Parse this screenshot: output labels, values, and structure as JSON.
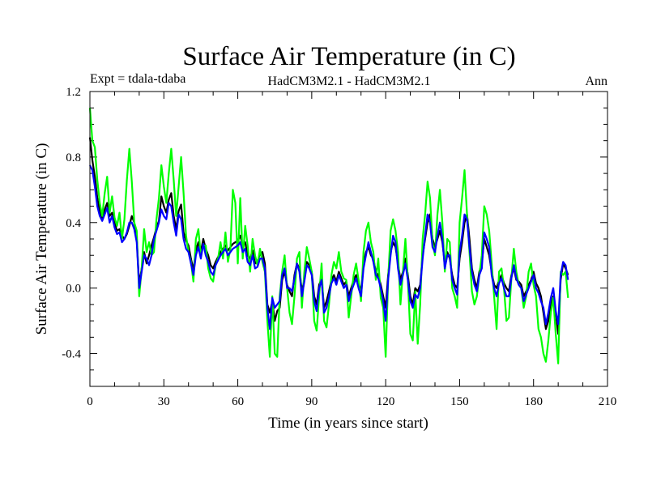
{
  "chart_data": {
    "type": "line",
    "title": "Surface Air Temperature (in C)",
    "subtitle_left": "Expt = tdala-tdaba",
    "subtitle_center": "HadCM3M2.1 - HadCM3M2.1",
    "subtitle_right": "Ann",
    "xlabel": "Time (in years since start)",
    "ylabel": "Surface Air Temperature (in C)",
    "xlim": [
      0,
      210
    ],
    "ylim": [
      -0.6,
      1.2
    ],
    "x_ticks": [
      0,
      30,
      60,
      90,
      120,
      150,
      180,
      210
    ],
    "x_tick_labels": [
      "0",
      "30",
      "60",
      "90",
      "120",
      "150",
      "180",
      "210"
    ],
    "y_ticks": [
      -0.4,
      0.0,
      0.4,
      0.8,
      1.2
    ],
    "y_tick_labels": [
      "-0.4",
      "0.0",
      "0.4",
      "0.8",
      "1.2"
    ],
    "grid": false,
    "legend": "none",
    "series": [
      {
        "name": "black",
        "color": "#000000",
        "x_start": 0,
        "x_step": 1,
        "values": [
          0.92,
          0.78,
          0.68,
          0.55,
          0.47,
          0.42,
          0.48,
          0.52,
          0.44,
          0.46,
          0.4,
          0.35,
          0.36,
          0.32,
          0.3,
          0.33,
          0.38,
          0.44,
          0.4,
          0.3,
          0.02,
          0.12,
          0.22,
          0.15,
          0.2,
          0.26,
          0.31,
          0.37,
          0.41,
          0.56,
          0.5,
          0.46,
          0.54,
          0.58,
          0.44,
          0.36,
          0.47,
          0.51,
          0.34,
          0.29,
          0.26,
          0.18,
          0.11,
          0.23,
          0.28,
          0.22,
          0.3,
          0.24,
          0.2,
          0.14,
          0.12,
          0.16,
          0.19,
          0.22,
          0.24,
          0.26,
          0.23,
          0.25,
          0.27,
          0.28,
          0.29,
          0.32,
          0.26,
          0.28,
          0.2,
          0.18,
          0.23,
          0.15,
          0.16,
          0.21,
          0.22,
          0.15,
          -0.1,
          -0.15,
          -0.08,
          -0.2,
          -0.14,
          -0.12,
          0.05,
          0.1,
          0.02,
          -0.02,
          -0.05,
          0.08,
          0.15,
          0.12,
          -0.02,
          0.05,
          0.16,
          0.14,
          0.1,
          -0.05,
          -0.1,
          0.02,
          0.06,
          -0.12,
          -0.08,
          -0.02,
          0.05,
          0.08,
          0.04,
          0.1,
          0.06,
          0.02,
          0.04,
          -0.05,
          0.0,
          0.05,
          0.08,
          0.03,
          -0.02,
          0.15,
          0.22,
          0.25,
          0.2,
          0.18,
          0.1,
          0.08,
          0.02,
          -0.05,
          -0.12,
          0.08,
          0.22,
          0.28,
          0.25,
          0.15,
          0.05,
          0.1,
          0.18,
          0.08,
          -0.05,
          -0.1,
          0.0,
          -0.02,
          0.02,
          0.2,
          0.3,
          0.4,
          0.45,
          0.3,
          0.25,
          0.3,
          0.35,
          0.28,
          0.15,
          0.22,
          0.18,
          0.08,
          0.02,
          0.0,
          0.18,
          0.28,
          0.4,
          0.45,
          0.3,
          0.12,
          0.05,
          0.0,
          0.1,
          0.15,
          0.3,
          0.25,
          0.2,
          0.1,
          0.02,
          0.0,
          0.05,
          0.08,
          0.03,
          0.0,
          -0.02,
          0.08,
          0.12,
          0.05,
          0.04,
          0.02,
          -0.05,
          -0.02,
          0.02,
          0.05,
          0.1,
          0.03,
          0.0,
          -0.05,
          -0.15,
          -0.25,
          -0.2,
          -0.1,
          -0.05,
          -0.15,
          -0.28,
          0.05,
          0.15,
          0.12,
          0.08
        ]
      },
      {
        "name": "green",
        "color": "#00ff00",
        "x_start": 0,
        "x_step": 1,
        "values": [
          1.1,
          0.9,
          0.86,
          0.66,
          0.52,
          0.44,
          0.58,
          0.68,
          0.46,
          0.56,
          0.43,
          0.38,
          0.46,
          0.3,
          0.42,
          0.66,
          0.85,
          0.65,
          0.4,
          0.35,
          -0.05,
          0.12,
          0.36,
          0.22,
          0.28,
          0.2,
          0.22,
          0.42,
          0.55,
          0.75,
          0.62,
          0.52,
          0.7,
          0.85,
          0.66,
          0.44,
          0.62,
          0.8,
          0.58,
          0.32,
          0.22,
          0.16,
          0.04,
          0.3,
          0.36,
          0.2,
          0.26,
          0.26,
          0.12,
          0.06,
          0.04,
          0.14,
          0.18,
          0.28,
          0.18,
          0.34,
          0.16,
          0.24,
          0.6,
          0.52,
          0.15,
          0.55,
          0.18,
          0.38,
          0.26,
          0.1,
          0.3,
          0.2,
          0.14,
          0.24,
          0.16,
          0.1,
          -0.2,
          -0.42,
          -0.05,
          -0.4,
          -0.42,
          -0.05,
          0.1,
          0.2,
          0.0,
          -0.15,
          -0.22,
          -0.05,
          0.18,
          0.22,
          -0.12,
          0.1,
          0.25,
          0.18,
          0.1,
          -0.2,
          -0.26,
          -0.05,
          0.15,
          -0.2,
          -0.24,
          -0.1,
          0.08,
          0.16,
          0.12,
          0.22,
          0.1,
          0.06,
          0.05,
          -0.18,
          -0.05,
          0.08,
          0.15,
          0.05,
          -0.08,
          0.22,
          0.35,
          0.4,
          0.28,
          0.22,
          0.05,
          0.18,
          -0.06,
          -0.12,
          -0.42,
          0.05,
          0.35,
          0.42,
          0.35,
          0.22,
          -0.1,
          0.1,
          0.3,
          0.05,
          -0.28,
          -0.32,
          -0.02,
          -0.34,
          -0.1,
          0.3,
          0.45,
          0.65,
          0.55,
          0.28,
          0.2,
          0.45,
          0.6,
          0.4,
          0.1,
          0.3,
          0.28,
          0.0,
          -0.05,
          -0.12,
          0.4,
          0.55,
          0.72,
          0.45,
          0.22,
          -0.02,
          -0.1,
          -0.05,
          0.08,
          0.2,
          0.5,
          0.45,
          0.35,
          0.15,
          -0.05,
          -0.25,
          0.1,
          0.12,
          0.0,
          -0.2,
          -0.18,
          0.06,
          0.24,
          0.1,
          0.02,
          0.0,
          -0.12,
          -0.05,
          0.1,
          0.15,
          0.02,
          -0.05,
          -0.25,
          -0.3,
          -0.4,
          -0.45,
          -0.32,
          -0.15,
          -0.06,
          -0.28,
          -0.46,
          0.1,
          0.08,
          0.1,
          -0.06
        ]
      },
      {
        "name": "blue",
        "color": "#0000ff",
        "x_start": 0,
        "x_step": 1,
        "values": [
          0.75,
          0.72,
          0.62,
          0.5,
          0.44,
          0.41,
          0.45,
          0.49,
          0.4,
          0.44,
          0.37,
          0.33,
          0.34,
          0.28,
          0.3,
          0.34,
          0.4,
          0.4,
          0.36,
          0.28,
          0.0,
          0.1,
          0.2,
          0.18,
          0.14,
          0.2,
          0.3,
          0.35,
          0.4,
          0.48,
          0.44,
          0.42,
          0.52,
          0.5,
          0.4,
          0.32,
          0.45,
          0.42,
          0.3,
          0.24,
          0.22,
          0.15,
          0.08,
          0.2,
          0.25,
          0.18,
          0.27,
          0.2,
          0.16,
          0.1,
          0.08,
          0.14,
          0.17,
          0.2,
          0.22,
          0.24,
          0.2,
          0.22,
          0.24,
          0.25,
          0.26,
          0.28,
          0.22,
          0.24,
          0.16,
          0.14,
          0.2,
          0.12,
          0.13,
          0.18,
          0.18,
          0.12,
          -0.12,
          -0.25,
          -0.06,
          -0.12,
          -0.1,
          -0.08,
          0.08,
          0.12,
          0.0,
          0.0,
          -0.02,
          0.06,
          0.15,
          0.1,
          -0.05,
          0.04,
          0.14,
          0.12,
          0.08,
          -0.08,
          -0.14,
          0.0,
          0.05,
          -0.15,
          -0.12,
          -0.05,
          0.03,
          0.06,
          0.02,
          0.08,
          0.04,
          0.0,
          0.02,
          -0.08,
          -0.02,
          0.02,
          0.06,
          0.0,
          -0.05,
          0.12,
          0.2,
          0.28,
          0.22,
          0.16,
          0.08,
          0.06,
          0.0,
          -0.08,
          -0.2,
          0.05,
          0.2,
          0.32,
          0.28,
          0.12,
          0.02,
          0.08,
          0.15,
          0.05,
          -0.08,
          -0.12,
          -0.04,
          -0.06,
          0.0,
          0.18,
          0.32,
          0.45,
          0.4,
          0.25,
          0.22,
          0.32,
          0.4,
          0.3,
          0.12,
          0.2,
          0.2,
          0.05,
          0.0,
          -0.04,
          0.22,
          0.32,
          0.45,
          0.42,
          0.25,
          0.1,
          0.02,
          -0.02,
          0.08,
          0.12,
          0.34,
          0.3,
          0.25,
          0.08,
          0.0,
          -0.05,
          0.03,
          0.06,
          0.0,
          -0.05,
          -0.05,
          0.06,
          0.14,
          0.06,
          0.02,
          0.0,
          -0.08,
          -0.04,
          0.0,
          0.04,
          0.08,
          0.0,
          -0.03,
          -0.08,
          -0.12,
          -0.22,
          -0.15,
          -0.06,
          0.0,
          -0.14,
          -0.22,
          0.08,
          0.16,
          0.14,
          0.05
        ]
      }
    ]
  }
}
